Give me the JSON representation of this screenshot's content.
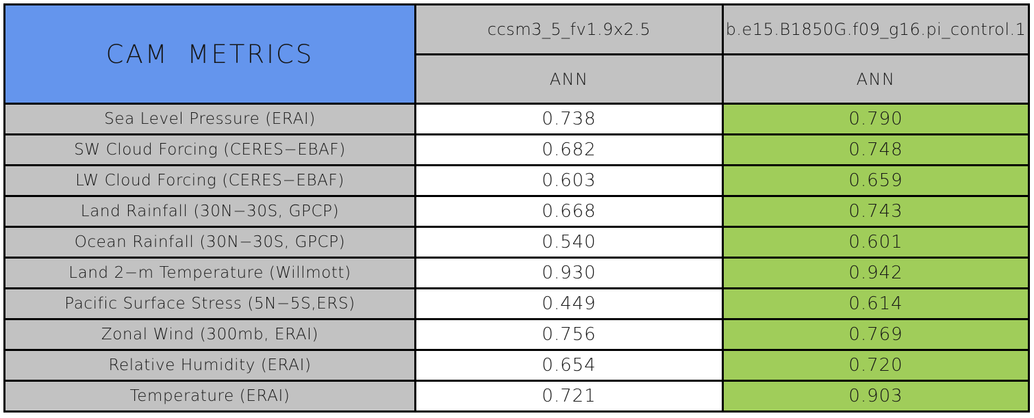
{
  "colors": {
    "title_bg": "#6495ED",
    "label_bg": "#C2C2C2",
    "base_value_bg": "#FFFFFF",
    "highlight_value_bg": "#A0CD5A",
    "gridline": "#000000",
    "text": "#161616"
  },
  "chart_data": {
    "type": "table",
    "title": "CAM METRICS",
    "columns": [
      {
        "model": "ccsm3_5_fv1.9x2.5",
        "season": "ANN"
      },
      {
        "model": "b.e15.B1850G.f09_g16.pi_control.1",
        "season": "ANN"
      }
    ],
    "rows": [
      {
        "metric": "Sea Level Pressure (ERAI)",
        "values": [
          "0.738",
          "0.790"
        ]
      },
      {
        "metric": "SW Cloud Forcing (CERES−EBAF)",
        "values": [
          "0.682",
          "0.748"
        ]
      },
      {
        "metric": "LW Cloud Forcing (CERES−EBAF)",
        "values": [
          "0.603",
          "0.659"
        ]
      },
      {
        "metric": "Land Rainfall (30N−30S, GPCP)",
        "values": [
          "0.668",
          "0.743"
        ]
      },
      {
        "metric": "Ocean Rainfall (30N−30S, GPCP)",
        "values": [
          "0.540",
          "0.601"
        ]
      },
      {
        "metric": "Land 2−m Temperature (Willmott)",
        "values": [
          "0.930",
          "0.942"
        ]
      },
      {
        "metric": "Pacific Surface Stress (5N−5S,ERS)",
        "values": [
          "0.449",
          "0.614"
        ]
      },
      {
        "metric": "Zonal Wind (300mb, ERAI)",
        "values": [
          "0.756",
          "0.769"
        ]
      },
      {
        "metric": "Relative Humidity (ERAI)",
        "values": [
          "0.654",
          "0.720"
        ]
      },
      {
        "metric": "Temperature (ERAI)",
        "values": [
          "0.721",
          "0.903"
        ]
      }
    ]
  }
}
